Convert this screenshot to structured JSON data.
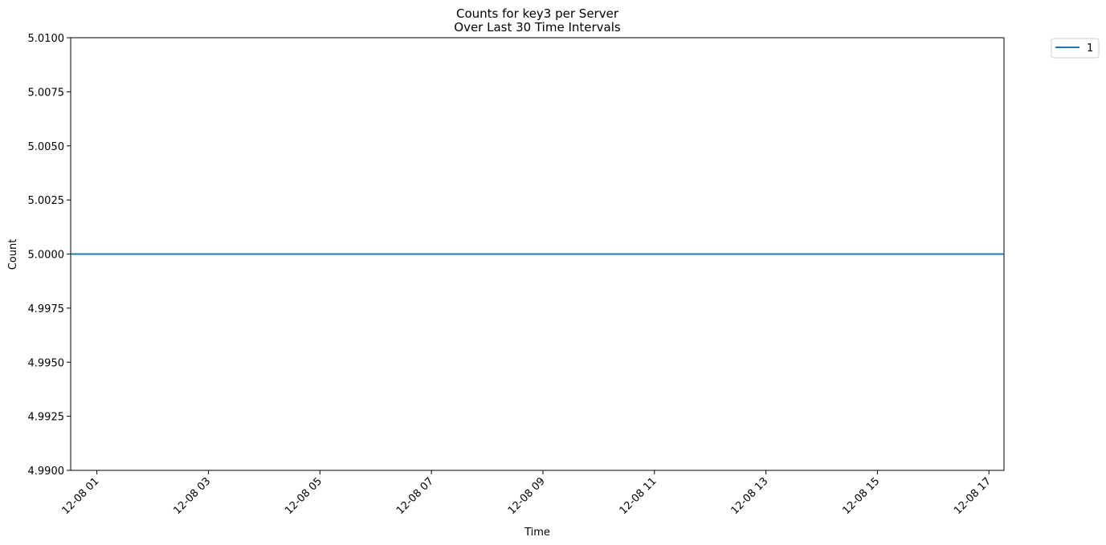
{
  "chart_data": {
    "type": "line",
    "title": "Counts for key3 per Server",
    "subtitle": "Over Last 30 Time Intervals",
    "xlabel": "Time",
    "ylabel": "Count",
    "ylim": [
      4.99,
      5.01
    ],
    "yticks": [
      "4.9900",
      "4.9925",
      "4.9950",
      "4.9975",
      "5.0000",
      "5.0025",
      "5.0050",
      "5.0075",
      "5.0100"
    ],
    "xticks": [
      "12-08 01",
      "12-08 03",
      "12-08 05",
      "12-08 07",
      "12-08 09",
      "12-08 11",
      "12-08 13",
      "12-08 15",
      "12-08 17"
    ],
    "xlim_hours": [
      0.53,
      17.27
    ],
    "grid": false,
    "legend": "upper right outside",
    "series": [
      {
        "name": "1",
        "color": "#1f77b4",
        "points": [
          {
            "x": "12-08 00:32",
            "y": 5.0
          },
          {
            "x": "12-08 17:16",
            "y": 5.0
          }
        ]
      }
    ]
  }
}
